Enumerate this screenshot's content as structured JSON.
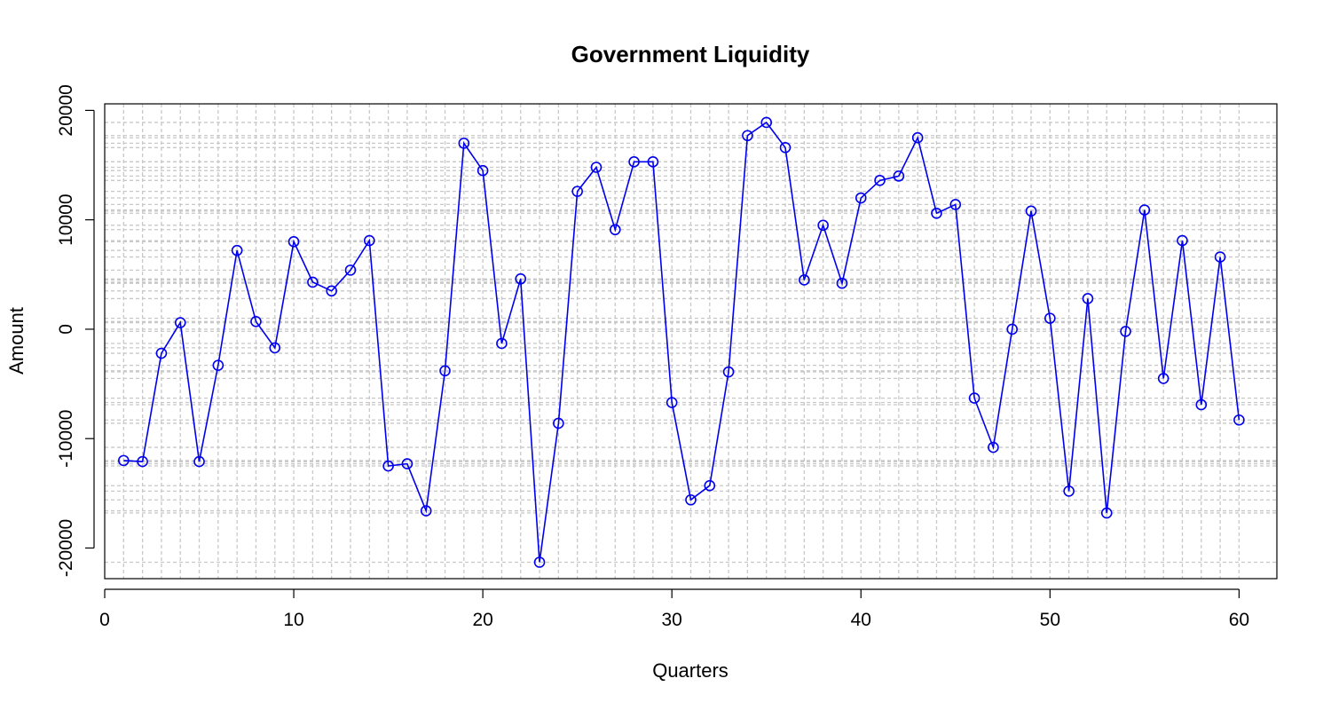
{
  "chart_data": {
    "type": "line",
    "title": "Government Liquidity",
    "xlabel": "Quarters",
    "ylabel": "Amount",
    "xlim": [
      0,
      62
    ],
    "ylim": [
      -22800,
      20600
    ],
    "xticks": [
      0,
      10,
      20,
      30,
      40,
      50,
      60
    ],
    "yticks": [
      -20000,
      -10000,
      0,
      10000,
      20000
    ],
    "grid": true,
    "marker": "open-circle",
    "colors": {
      "series": "#0000ee",
      "grid": "#c8c8c8"
    },
    "series": [
      {
        "x": [
          1,
          2,
          3,
          4,
          5,
          6,
          7,
          8,
          9,
          10,
          11,
          12,
          13,
          14,
          15,
          16,
          17,
          18,
          19,
          20,
          21,
          22,
          23,
          24,
          25,
          26,
          27,
          28,
          29,
          30,
          31,
          32,
          33,
          34,
          35,
          36,
          37,
          38,
          39,
          40,
          41,
          42,
          43,
          44,
          45,
          46,
          47,
          48,
          49,
          50,
          51,
          52,
          53,
          54,
          55,
          56,
          57,
          58,
          59,
          60
        ],
        "values": [
          -12000,
          -12100,
          -2200,
          600,
          -12100,
          -3300,
          7200,
          700,
          -1700,
          8000,
          4300,
          3500,
          5400,
          8100,
          -12500,
          -12300,
          -16600,
          -3800,
          17000,
          14500,
          -1300,
          4600,
          -21300,
          -8600,
          12600,
          14800,
          9100,
          15300,
          15300,
          -6700,
          -15600,
          -14300,
          -3900,
          17700,
          18900,
          16600,
          4500,
          9500,
          4200,
          12000,
          13600,
          14000,
          17500,
          10600,
          11400,
          -6300,
          -10800,
          0,
          10800,
          1000,
          -14800,
          2800,
          -16800,
          -200,
          10900,
          -4500,
          8100,
          -6900,
          6600,
          -8300
        ]
      }
    ]
  }
}
